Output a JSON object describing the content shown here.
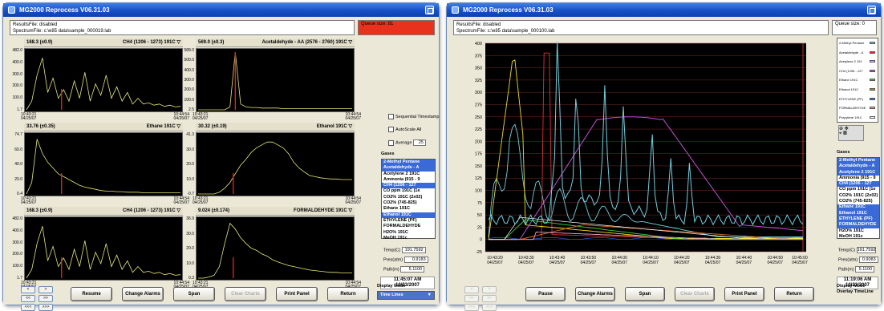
{
  "left": {
    "title": "MG2000 Reprocess   V06.31.03",
    "info_line1": "ResultsFile: disabled",
    "info_line2": "SpectrumFile: c:\\e85 data\\sample_000019.lab",
    "queue": "Queue size: 81",
    "queue_color": "#e8321e",
    "plots": [
      {
        "value": "168.3 (±0.9)",
        "gas": "CH4 (1206 - 1273) 191C",
        "y": [
          "482.0",
          "400.0",
          "300.0",
          "200.0",
          "100.0",
          "1.7"
        ],
        "x0": "10:43:21 04/25/07",
        "x1": "10:44:54 04/25/07"
      },
      {
        "value": "569.0 (±0.3)",
        "gas": "Acetaldehyde - AA (2576 - 2760) 191C",
        "y": [
          "589.0",
          "500.0",
          "400.0",
          "300.0",
          "200.0",
          "100.0",
          "2.5"
        ],
        "x0": "10:43:21 04/25/07",
        "x1": "10:44:54 04/25/07"
      },
      {
        "value": "33.76 (±0.35)",
        "gas": "Ethane 191C",
        "y": [
          "74.7",
          "60.0",
          "40.0",
          "20.0",
          "0.4"
        ],
        "x0": "10:43:21 04/25/07",
        "x1": "10:44:54 04/25/07"
      },
      {
        "value": "30.32 (±0.19)",
        "gas": "Ethanol 191C",
        "y": [
          "41.3",
          "30.0",
          "20.0",
          "10.0",
          "-0.7"
        ],
        "x0": "10:43:21 04/25/07",
        "x1": "10:44:54 04/25/07"
      },
      {
        "value": "168.3 (±0.9)",
        "gas": "CH4 (1206 - 1273) 191C",
        "y": [
          "482.0",
          "400.0",
          "300.0",
          "200.0",
          "100.0",
          "1.7"
        ],
        "x0": "10:43:21 04/25/07",
        "x1": "10:44:54 04/25/07"
      },
      {
        "value": "9.024 (±0.174)",
        "gas": "FORMALDEHYDE 191C",
        "y": [
          "36.9",
          "30.0",
          "20.0",
          "10.0",
          "0.3"
        ],
        "x0": "10:43:21 04/25/07",
        "x1": "10:44:54 04/25/07"
      }
    ],
    "checkboxes": [
      "Sequential Timestamp",
      "AutoScale All",
      "Average"
    ],
    "average_value": "25",
    "gases_label": "Gases",
    "gases": [
      "2-Methyl Pentane",
      "Acetaldehyde - A",
      "Acetylene 2 191C",
      "Ammonia (915 - 9",
      "CH4 (1206 - 127",
      "CO ppm 191C (1e",
      "CO2% 191C (2x02)",
      "CO2% (745-825)",
      "Ethane 191C",
      "Ethanol 191C",
      "ETHYLENE (PF)",
      "FORMALDEHYDE",
      "H2O% 191C",
      "MeOH 191c"
    ],
    "gases_selected": [
      0,
      1,
      4,
      9
    ],
    "temp_label": "Temp(C)",
    "temp": "191.7592",
    "pres_label": "Pres(atm)",
    "pres": "0.9183",
    "path_label": "Path(m)",
    "path": "5.1100",
    "time": "11:45:07 AM",
    "date": "10/23/2007",
    "buttons": [
      "Resume",
      "Change Alarms",
      "Span",
      "Clear Charts",
      "Print Panel",
      "Return"
    ],
    "scroll": [
      "<",
      ">",
      "<<",
      ">>",
      "<<<",
      ">>>"
    ],
    "display_mode_label": "Display Mode",
    "display_mode": "Time Lines"
  },
  "right": {
    "title": "MG2000 Reprocess   V06.31.03",
    "info_line1": "ResultsFile: disabled",
    "info_line2": "SpectrumFile: c:\\e85 data\\sample_000100.lab",
    "queue": "Queue size: 0",
    "y": [
      "400",
      "375",
      "350",
      "325",
      "300",
      "275",
      "250",
      "225",
      "200",
      "175",
      "150",
      "125",
      "100",
      "75",
      "50",
      "25",
      "0",
      "-25"
    ],
    "x": [
      [
        "10:43:20",
        "04/25/07"
      ],
      [
        "10:43:30",
        "04/25/07"
      ],
      [
        "10:43:40",
        "04/25/07"
      ],
      [
        "10:43:50",
        "04/25/07"
      ],
      [
        "10:44:00",
        "04/25/07"
      ],
      [
        "10:44:10",
        "04/25/07"
      ],
      [
        "10:44:20",
        "04/25/07"
      ],
      [
        "10:44:30",
        "04/25/07"
      ],
      [
        "10:44:40",
        "04/25/07"
      ],
      [
        "10:44:50",
        "04/25/07"
      ],
      [
        "10:45:00",
        "04/25/07"
      ]
    ],
    "legend": [
      {
        "name": "2-Methyl Pentane",
        "color": "#6fd0e0"
      },
      {
        "name": "Acetaldehyde - A",
        "color": "#e03030"
      },
      {
        "name": "Acetylene 2 191",
        "color": "#f0e020"
      },
      {
        "name": "CH4 (1206 - 127",
        "color": "#c050d0"
      },
      {
        "name": "Ethane 191C",
        "color": "#40d040"
      },
      {
        "name": "Ethanol 191C",
        "color": "#e07020"
      },
      {
        "name": "ETHYLENE (PF)",
        "color": "#3070f0"
      },
      {
        "name": "FORMALDEHYDE",
        "color": "#f0a0c0"
      },
      {
        "name": "Propylene 191C",
        "color": "#ffffff"
      }
    ],
    "gases_label": "Gases",
    "gases": [
      "2-Methyl Pentane",
      "Acetaldehyde - A",
      "Acetylene 2 191C",
      "Ammonia (915 - 9",
      "CH4 (1206 - 127",
      "CO ppm 191C (1e",
      "CO2% 191C (2x02)",
      "CO2% (745-825)",
      "Ethane 191C",
      "Ethanol 191C",
      "ETHYLENE (PF)",
      "FORMALDEHYDE",
      "H2O% 191C",
      "MeOH 191c"
    ],
    "gases_selected": [
      0,
      1,
      2,
      4,
      8,
      9,
      10,
      11
    ],
    "temp_label": "Temp(C)",
    "temp": "191.7592",
    "pres_label": "Pres(atm)",
    "pres": "0.9083",
    "path_label": "Path(m)",
    "path": "5.1100",
    "time": "11:19:06 AM",
    "date": "10/23/2007",
    "buttons": [
      "Pause",
      "Change Alarms",
      "Span",
      "Clear Charts",
      "Print Panel",
      "Return"
    ],
    "scroll": [
      "<",
      ">",
      "<<",
      ">>",
      "<<<",
      ">>>"
    ],
    "display_mode_label": "Display Mode",
    "display_mode": "Overlay TimeLine"
  }
}
